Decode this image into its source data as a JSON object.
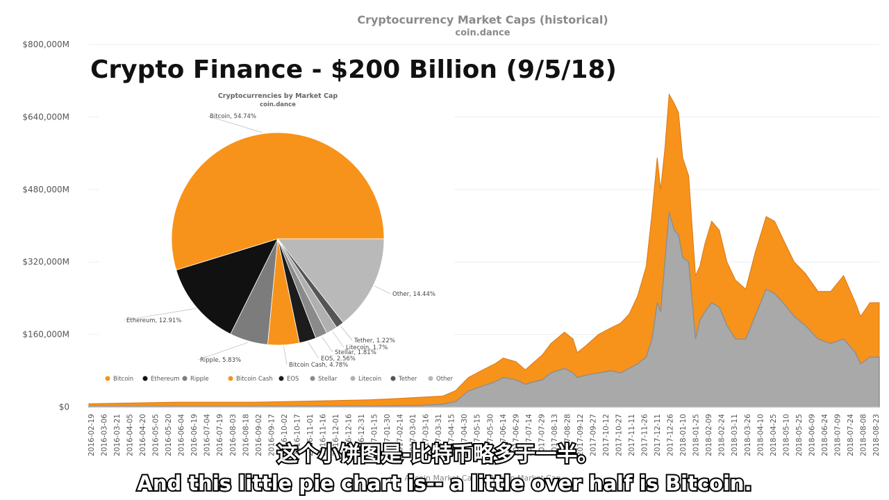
{
  "chart_data": [
    {
      "type": "area",
      "title": "Cryptocurrency Market Caps (historical)",
      "subtitle": "coin.dance",
      "ylim": [
        0,
        800000
      ],
      "y_ticks": [
        "$0",
        "$160,000M",
        "$320,000M",
        "$480,000M",
        "$640,000M",
        "$800,000M"
      ],
      "y_tick_values": [
        0,
        160000,
        320000,
        480000,
        640000,
        800000
      ],
      "x_tick_labels": [
        "2016-02-19",
        "2016-03-06",
        "2016-03-21",
        "2016-04-05",
        "2016-04-20",
        "2016-05-05",
        "2016-05-20",
        "2016-06-04",
        "2016-06-19",
        "2016-07-04",
        "2016-07-19",
        "2016-08-03",
        "2016-08-18",
        "2016-09-02",
        "2016-09-17",
        "2016-10-02",
        "2016-10-17",
        "2016-11-01",
        "2016-11-16",
        "2016-12-01",
        "2016-12-16",
        "2016-12-31",
        "2017-01-15",
        "2017-01-30",
        "2017-02-14",
        "2017-03-01",
        "2017-03-16",
        "2017-03-31",
        "2017-04-15",
        "2017-04-30",
        "2017-05-15",
        "2017-05-30",
        "2017-06-14",
        "2017-06-29",
        "2017-07-14",
        "2017-07-29",
        "2017-08-13",
        "2017-08-28",
        "2017-09-12",
        "2017-09-27",
        "2017-10-12",
        "2017-10-27",
        "2017-11-11",
        "2017-11-26",
        "2017-12-11",
        "2017-12-26",
        "2018-01-10",
        "2018-01-25",
        "2018-02-09",
        "2018-02-24",
        "2018-03-11",
        "2018-03-26",
        "2018-04-10",
        "2018-04-25",
        "2018-05-10",
        "2018-05-25",
        "2018-06-09",
        "2018-06-24",
        "2018-07-09",
        "2018-07-24",
        "2018-08-08",
        "2018-08-23"
      ],
      "legend": "Altcoin Market Cap ... Bitcoin Market Cap",
      "series": [
        {
          "name": "Altcoin Market Cap",
          "color": "#a9a9a9",
          "x": [
            "2016-02-19",
            "2016-06-01",
            "2016-09-01",
            "2016-12-01",
            "2017-01-15",
            "2017-02-15",
            "2017-03-15",
            "2017-04-10",
            "2017-04-25",
            "2017-05-10",
            "2017-05-25",
            "2017-06-10",
            "2017-06-20",
            "2017-07-05",
            "2017-07-16",
            "2017-07-25",
            "2017-08-05",
            "2017-08-15",
            "2017-08-31",
            "2017-09-10",
            "2017-09-15",
            "2017-09-25",
            "2017-10-10",
            "2017-10-25",
            "2017-11-05",
            "2017-11-15",
            "2017-11-25",
            "2017-12-05",
            "2017-12-12",
            "2017-12-18",
            "2017-12-22",
            "2017-12-27",
            "2018-01-01",
            "2018-01-07",
            "2018-01-12",
            "2018-01-17",
            "2018-01-24",
            "2018-02-01",
            "2018-02-06",
            "2018-02-12",
            "2018-02-20",
            "2018-03-01",
            "2018-03-10",
            "2018-03-20",
            "2018-04-01",
            "2018-04-12",
            "2018-04-25",
            "2018-05-05",
            "2018-05-15",
            "2018-05-28",
            "2018-06-10",
            "2018-06-25",
            "2018-07-10",
            "2018-07-25",
            "2018-08-08",
            "2018-08-14",
            "2018-08-25",
            "2018-09-05"
          ],
          "values": [
            1000,
            1500,
            1500,
            2000,
            2000,
            2500,
            3500,
            6000,
            12000,
            35000,
            45000,
            55000,
            65000,
            60000,
            50000,
            55000,
            60000,
            75000,
            85000,
            75000,
            65000,
            70000,
            75000,
            80000,
            75000,
            85000,
            95000,
            110000,
            150000,
            230000,
            210000,
            320000,
            430000,
            390000,
            380000,
            330000,
            320000,
            150000,
            190000,
            210000,
            230000,
            220000,
            180000,
            150000,
            150000,
            200000,
            260000,
            250000,
            230000,
            200000,
            180000,
            150000,
            140000,
            150000,
            120000,
            95000,
            110000,
            110000
          ]
        },
        {
          "name": "Bitcoin Market Cap",
          "color": "#f7931a",
          "x": [
            "2016-02-19",
            "2016-06-01",
            "2016-09-01",
            "2016-12-01",
            "2017-01-15",
            "2017-02-15",
            "2017-03-15",
            "2017-04-10",
            "2017-04-25",
            "2017-05-10",
            "2017-05-25",
            "2017-06-10",
            "2017-06-20",
            "2017-07-05",
            "2017-07-16",
            "2017-07-25",
            "2017-08-05",
            "2017-08-15",
            "2017-08-31",
            "2017-09-10",
            "2017-09-15",
            "2017-09-25",
            "2017-10-10",
            "2017-10-25",
            "2017-11-05",
            "2017-11-15",
            "2017-11-25",
            "2017-12-05",
            "2017-12-12",
            "2017-12-18",
            "2017-12-22",
            "2017-12-27",
            "2018-01-01",
            "2018-01-07",
            "2018-01-12",
            "2018-01-17",
            "2018-01-24",
            "2018-02-01",
            "2018-02-06",
            "2018-02-12",
            "2018-02-20",
            "2018-03-01",
            "2018-03-10",
            "2018-03-20",
            "2018-04-01",
            "2018-04-12",
            "2018-04-25",
            "2018-05-05",
            "2018-05-15",
            "2018-05-28",
            "2018-06-10",
            "2018-06-25",
            "2018-07-10",
            "2018-07-25",
            "2018-08-08",
            "2018-08-14",
            "2018-08-25",
            "2018-09-05"
          ],
          "values": [
            6000,
            9000,
            9000,
            12000,
            14000,
            16000,
            18000,
            18000,
            24000,
            30000,
            35000,
            40000,
            43000,
            40000,
            32000,
            42000,
            55000,
            65000,
            80000,
            75000,
            55000,
            65000,
            85000,
            95000,
            110000,
            120000,
            150000,
            200000,
            280000,
            320000,
            270000,
            250000,
            260000,
            280000,
            270000,
            220000,
            190000,
            140000,
            120000,
            150000,
            180000,
            170000,
            140000,
            130000,
            110000,
            140000,
            160000,
            160000,
            140000,
            120000,
            115000,
            105000,
            115000,
            140000,
            110000,
            105000,
            120000,
            120000
          ]
        }
      ]
    },
    {
      "type": "pie",
      "title": "Cryptocurrencies by Market Cap",
      "subtitle": "coin.dance",
      "slices": [
        {
          "name": "Bitcoin",
          "value": 54.74,
          "label": "Bitcoin, 54.74%",
          "color": "#f7931a"
        },
        {
          "name": "Ethereum",
          "value": 12.91,
          "label": "Ethereum, 12.91%",
          "color": "#111111"
        },
        {
          "name": "Ripple",
          "value": 5.83,
          "label": "Ripple, 5.83%",
          "color": "#7c7c7c"
        },
        {
          "name": "Bitcoin Cash",
          "value": 4.78,
          "label": "Bitcoin Cash, 4.78%",
          "color": "#f7931a"
        },
        {
          "name": "EOS",
          "value": 2.56,
          "label": "EOS, 2.56%",
          "color": "#1c1c1c"
        },
        {
          "name": "Stellar",
          "value": 1.81,
          "label": "Stellar, 1.81%",
          "color": "#8a8a8a"
        },
        {
          "name": "Litecoin",
          "value": 1.7,
          "label": "Litecoin, 1.7%",
          "color": "#b0b0b0"
        },
        {
          "name": "Tether",
          "value": 1.22,
          "label": "Tether, 1.22%",
          "color": "#555555"
        },
        {
          "name": "Other",
          "value": 14.44,
          "label": "Other, 14.44%",
          "color": "#b9b9b9"
        }
      ],
      "legend": [
        "Bitcoin",
        "Ethereum",
        "Ripple",
        "Bitcoin Cash",
        "EOS",
        "Stellar",
        "Litecoin",
        "Tether",
        "Other"
      ]
    }
  ],
  "headline": "Crypto Finance - $200 Billion (9/5/18)",
  "subtitles": {
    "chinese": "这个小饼图是-比特币略多于一半。",
    "english": "And this little pie chart is-- a little over half is Bitcoin."
  }
}
